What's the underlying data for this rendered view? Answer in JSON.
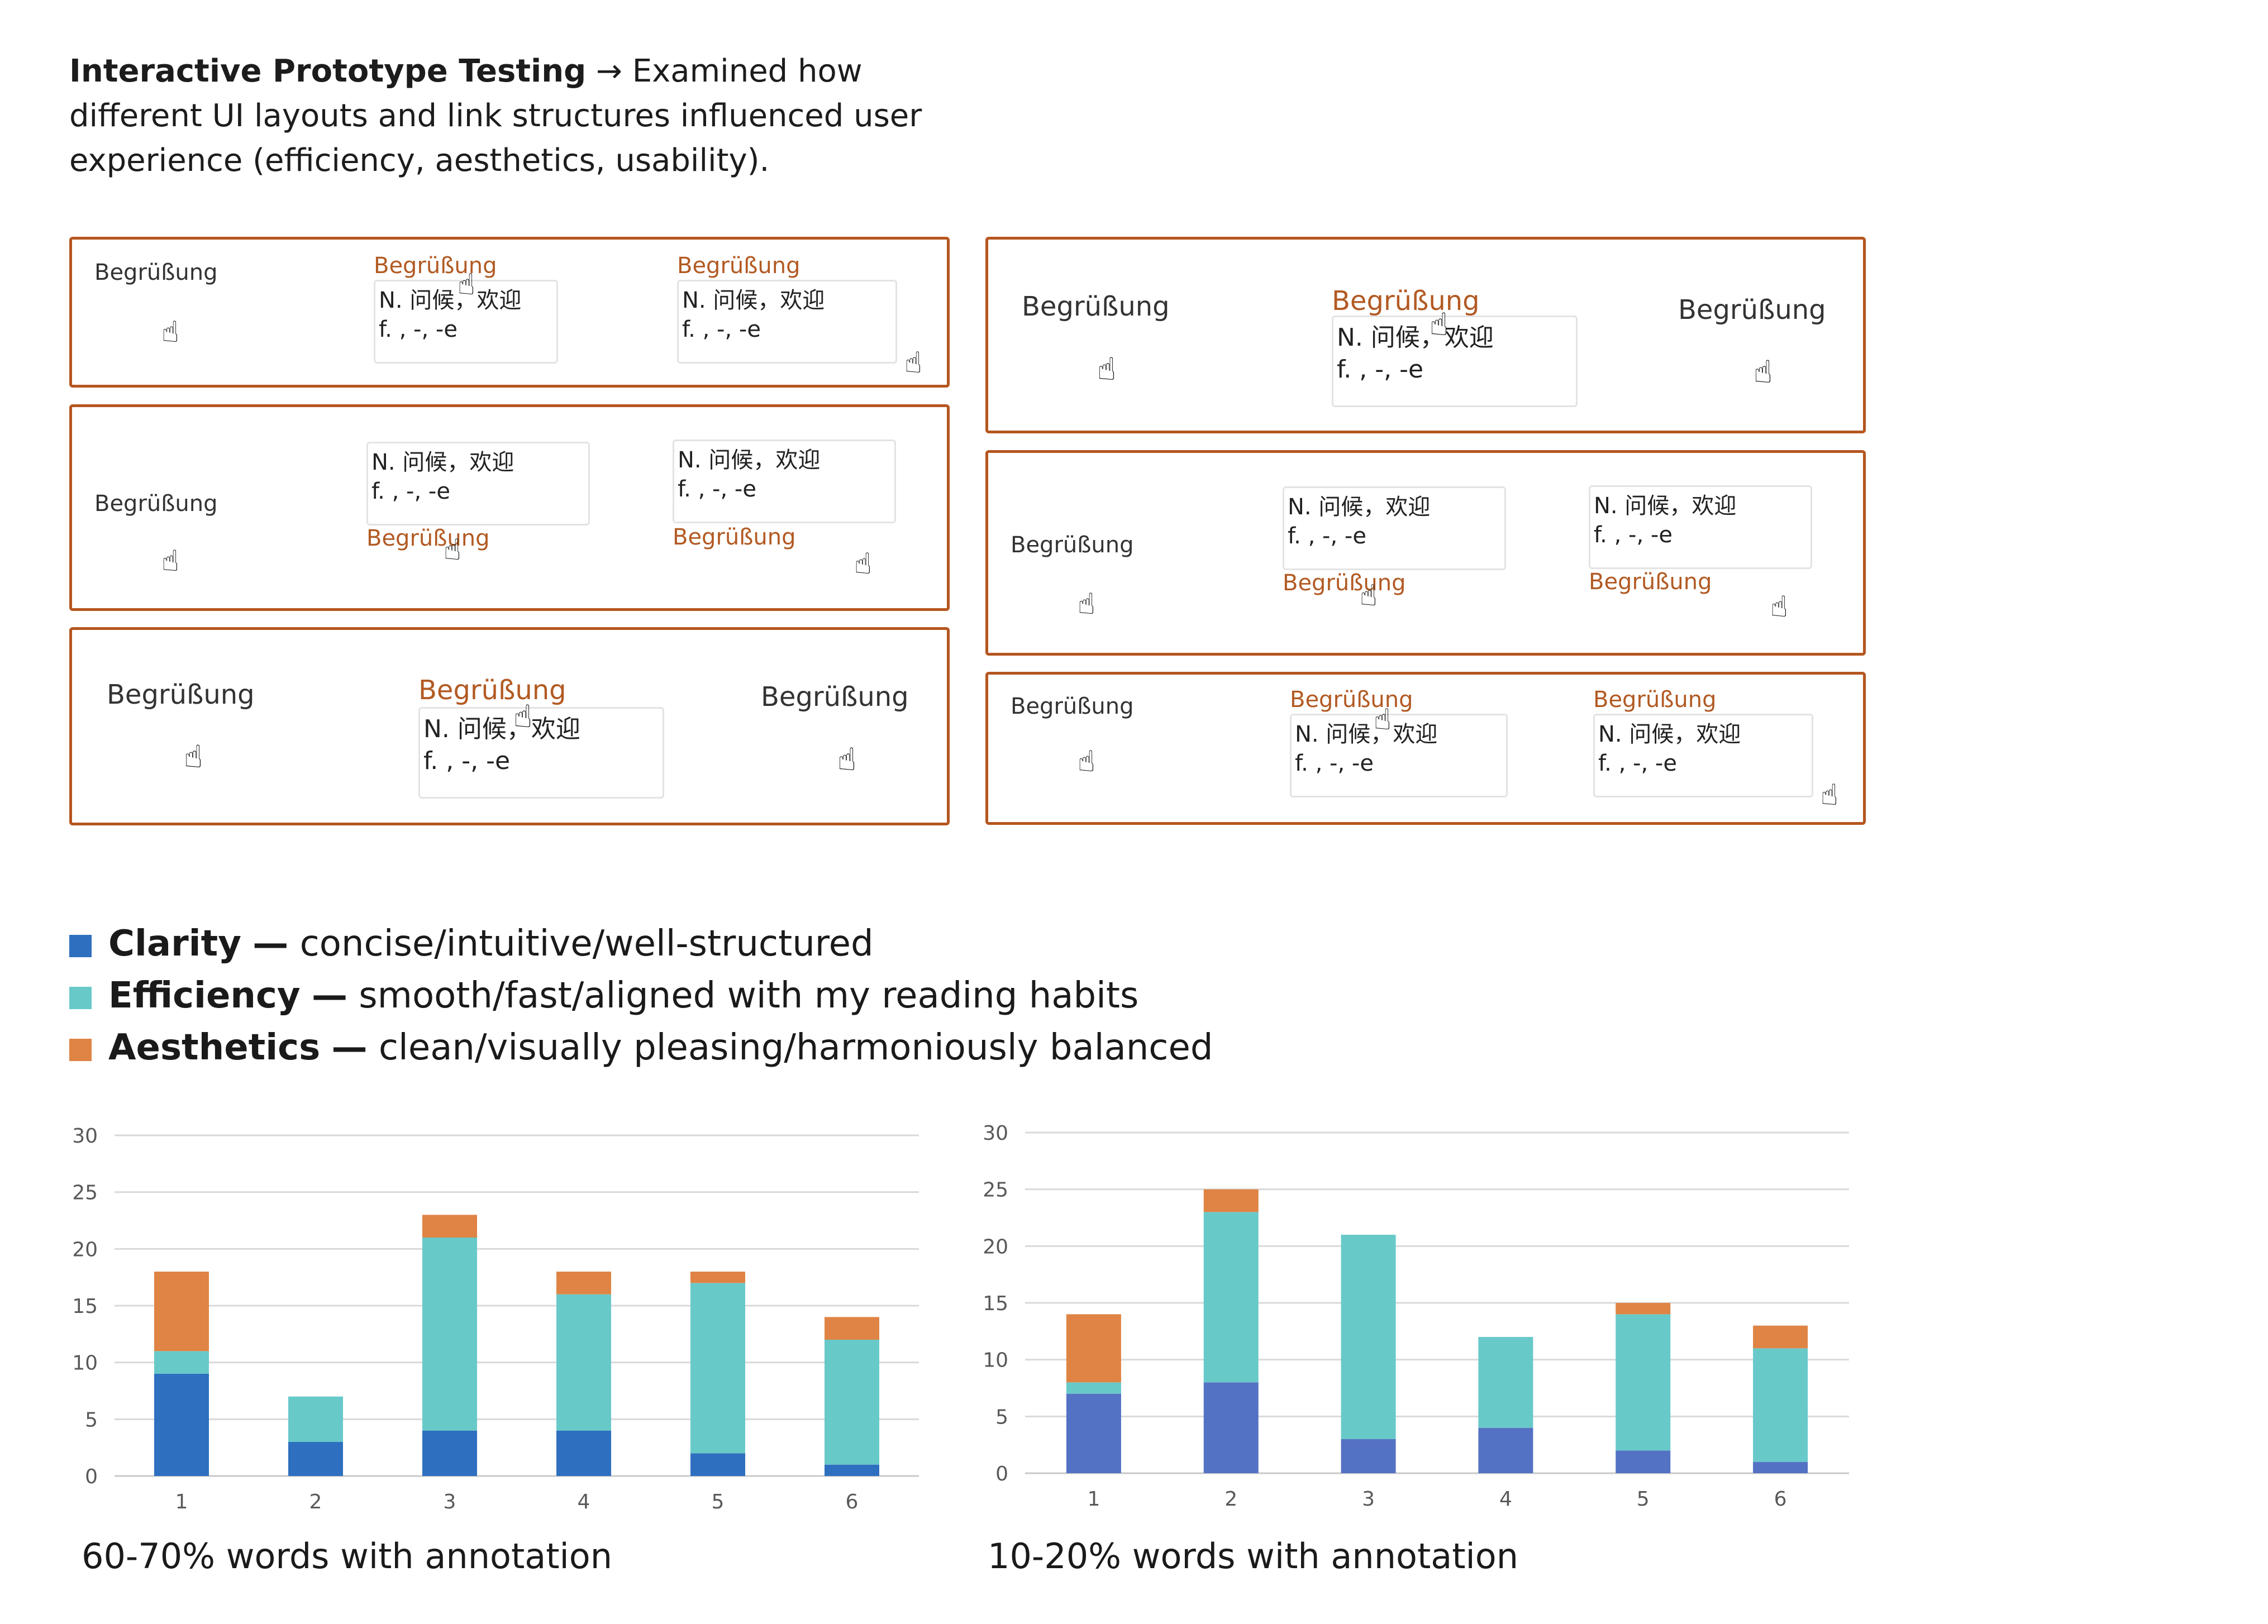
{
  "intro": {
    "bold": "Interactive Prototype Testing",
    "arrow": "→",
    "text": "Examined how different UI layouts and link structures influenced user experience (efficiency, aesthetics, usability)."
  },
  "prototype": {
    "word": "Begrüßung",
    "note_line1": "N. 问候，欢迎",
    "note_line2": "f. , -, -e",
    "hand_icon": "pointer-hand-icon"
  },
  "legend": [
    {
      "name": "Clarity",
      "dash": "—",
      "desc": "concise/intuitive/well-structured",
      "color": "#2e6fbf"
    },
    {
      "name": "Efficiency",
      "dash": "—",
      "desc": "smooth/fast/aligned with my reading habits",
      "color": "#68c9c9"
    },
    {
      "name": "Aesthetics",
      "dash": "—",
      "desc": "clean/visually pleasing/harmoniously balanced",
      "color": "#df8444"
    }
  ],
  "chart_data": [
    {
      "type": "bar",
      "stacked": true,
      "categories": [
        "1",
        "2",
        "3",
        "4",
        "5",
        "6"
      ],
      "series": [
        {
          "name": "Clarity",
          "color": "#2e6fbf",
          "values": [
            9,
            3,
            4,
            4,
            2,
            1
          ]
        },
        {
          "name": "Efficiency",
          "color": "#68c9c9",
          "values": [
            2,
            4,
            17,
            12,
            15,
            11
          ]
        },
        {
          "name": "Aesthetics",
          "color": "#df8444",
          "values": [
            7,
            0,
            2,
            2,
            1,
            2
          ]
        }
      ],
      "yticks": [
        "0",
        "5",
        "10",
        "15",
        "20",
        "25",
        "30"
      ],
      "ylim": [
        0,
        30
      ],
      "grid": true,
      "title": "",
      "xlabel": "",
      "ylabel": "",
      "caption": "60-70% words with annotation"
    },
    {
      "type": "bar",
      "stacked": true,
      "categories": [
        "1",
        "2",
        "3",
        "4",
        "5",
        "6"
      ],
      "series": [
        {
          "name": "Clarity",
          "color": "#5472c4",
          "values": [
            7,
            8,
            3,
            4,
            2,
            1
          ]
        },
        {
          "name": "Efficiency",
          "color": "#68c9c9",
          "values": [
            1,
            15,
            18,
            8,
            12,
            10
          ]
        },
        {
          "name": "Aesthetics",
          "color": "#df8444",
          "values": [
            6,
            2,
            0,
            0,
            1,
            2
          ]
        }
      ],
      "yticks": [
        "0",
        "5",
        "10",
        "15",
        "20",
        "25",
        "30"
      ],
      "ylim": [
        0,
        30
      ],
      "grid": true,
      "title": "",
      "xlabel": "",
      "ylabel": "",
      "caption": "10-20% words with annotation"
    }
  ]
}
